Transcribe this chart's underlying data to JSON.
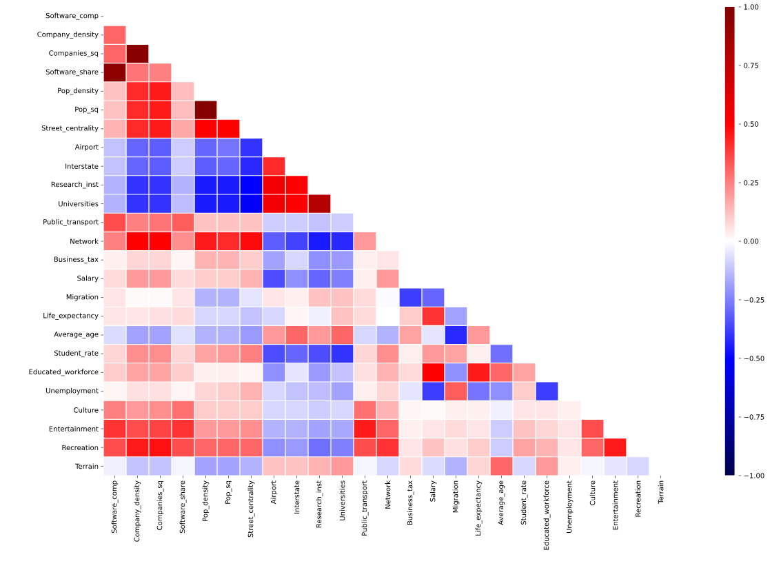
{
  "chart_data": {
    "type": "heatmap",
    "categories": [
      "Software_comp",
      "Company_density",
      "Companies_sq",
      "Software_share",
      "Pop_density",
      "Pop_sq",
      "Street_centrality",
      "Airport",
      "Interstate",
      "Research_inst",
      "Universities",
      "Public_transport",
      "Network",
      "Business_tax",
      "Salary",
      "Migration",
      "Life_expectancy",
      "Average_age",
      "Student_rate",
      "Educated_workforce",
      "Unemployment",
      "Culture",
      "Entertainment",
      "Recreation",
      "Terrain"
    ],
    "y_categories": [
      "Software_comp",
      "Company_density",
      "Companies_sq",
      "Software_share",
      "Pop_density",
      "Pop_sq",
      "Street_centrality",
      "Airport",
      "Interstate",
      "Research_inst",
      "Universities",
      "Public_transport",
      "Network",
      "Business_tax",
      "Salary",
      "Migration",
      "Life_expectancy",
      "Average_age",
      "Student_rate",
      "Educated_workforce",
      "Unemployment",
      "Culture",
      "Entertainment",
      "Recreation",
      "Terrain"
    ],
    "cells": [
      [
        null,
        null,
        null,
        null,
        null,
        null,
        null,
        null,
        null,
        null,
        null,
        null,
        null,
        null,
        null,
        null,
        null,
        null,
        null,
        null,
        null,
        null,
        null,
        null,
        null
      ],
      [
        0.3,
        null,
        null,
        null,
        null,
        null,
        null,
        null,
        null,
        null,
        null,
        null,
        null,
        null,
        null,
        null,
        null,
        null,
        null,
        null,
        null,
        null,
        null,
        null,
        null
      ],
      [
        0.3,
        0.97,
        null,
        null,
        null,
        null,
        null,
        null,
        null,
        null,
        null,
        null,
        null,
        null,
        null,
        null,
        null,
        null,
        null,
        null,
        null,
        null,
        null,
        null,
        null
      ],
      [
        0.95,
        0.27,
        0.25,
        null,
        null,
        null,
        null,
        null,
        null,
        null,
        null,
        null,
        null,
        null,
        null,
        null,
        null,
        null,
        null,
        null,
        null,
        null,
        null,
        null,
        null
      ],
      [
        0.12,
        0.42,
        0.45,
        0.13,
        null,
        null,
        null,
        null,
        null,
        null,
        null,
        null,
        null,
        null,
        null,
        null,
        null,
        null,
        null,
        null,
        null,
        null,
        null,
        null,
        null
      ],
      [
        0.12,
        0.42,
        0.45,
        0.13,
        0.98,
        null,
        null,
        null,
        null,
        null,
        null,
        null,
        null,
        null,
        null,
        null,
        null,
        null,
        null,
        null,
        null,
        null,
        null,
        null,
        null
      ],
      [
        0.15,
        0.42,
        0.45,
        0.17,
        0.5,
        0.5,
        null,
        null,
        null,
        null,
        null,
        null,
        null,
        null,
        null,
        null,
        null,
        null,
        null,
        null,
        null,
        null,
        null,
        null,
        null
      ],
      [
        -0.12,
        -0.3,
        -0.32,
        -0.1,
        -0.3,
        -0.27,
        -0.4,
        null,
        null,
        null,
        null,
        null,
        null,
        null,
        null,
        null,
        null,
        null,
        null,
        null,
        null,
        null,
        null,
        null,
        null
      ],
      [
        -0.12,
        -0.3,
        -0.32,
        -0.1,
        -0.32,
        -0.3,
        -0.42,
        0.42,
        null,
        null,
        null,
        null,
        null,
        null,
        null,
        null,
        null,
        null,
        null,
        null,
        null,
        null,
        null,
        null,
        null
      ],
      [
        -0.15,
        -0.4,
        -0.4,
        -0.15,
        -0.45,
        -0.45,
        -0.5,
        0.55,
        0.5,
        null,
        null,
        null,
        null,
        null,
        null,
        null,
        null,
        null,
        null,
        null,
        null,
        null,
        null,
        null,
        null
      ],
      [
        -0.15,
        -0.4,
        -0.4,
        -0.13,
        -0.45,
        -0.45,
        -0.52,
        0.55,
        0.5,
        0.8,
        null,
        null,
        null,
        null,
        null,
        null,
        null,
        null,
        null,
        null,
        null,
        null,
        null,
        null,
        null
      ],
      [
        0.35,
        0.25,
        0.27,
        0.32,
        0.12,
        0.12,
        0.12,
        -0.1,
        -0.1,
        -0.12,
        -0.1,
        null,
        null,
        null,
        null,
        null,
        null,
        null,
        null,
        null,
        null,
        null,
        null,
        null,
        null
      ],
      [
        0.25,
        0.5,
        0.5,
        0.22,
        0.45,
        0.42,
        0.48,
        -0.32,
        -0.37,
        -0.45,
        -0.42,
        0.2,
        null,
        null,
        null,
        null,
        null,
        null,
        null,
        null,
        null,
        null,
        null,
        null,
        null
      ],
      [
        0.03,
        0.08,
        0.08,
        0.02,
        0.15,
        0.15,
        0.1,
        -0.18,
        -0.08,
        -0.22,
        -0.2,
        0.03,
        0.05,
        null,
        null,
        null,
        null,
        null,
        null,
        null,
        null,
        null,
        null,
        null,
        null
      ],
      [
        0.07,
        0.2,
        0.2,
        0.07,
        0.1,
        0.1,
        0.15,
        -0.35,
        -0.22,
        -0.3,
        -0.25,
        0.03,
        0.2,
        0.0,
        null,
        null,
        null,
        null,
        null,
        null,
        null,
        null,
        null,
        null,
        null
      ],
      [
        0.05,
        0.01,
        0.01,
        0.05,
        -0.15,
        -0.15,
        -0.05,
        0.05,
        0.03,
        0.12,
        0.12,
        0.07,
        -0.01,
        -0.38,
        -0.3,
        null,
        null,
        null,
        null,
        null,
        null,
        null,
        null,
        null,
        null
      ],
      [
        0.05,
        0.05,
        0.06,
        0.07,
        -0.08,
        -0.08,
        -0.12,
        -0.08,
        0.02,
        -0.03,
        0.12,
        0.07,
        0.0,
        0.1,
        0.4,
        -0.18,
        null,
        null,
        null,
        null,
        null,
        null,
        null,
        null,
        null
      ],
      [
        -0.07,
        -0.18,
        -0.18,
        -0.06,
        -0.15,
        -0.15,
        -0.2,
        0.2,
        0.3,
        0.2,
        0.3,
        -0.08,
        -0.15,
        0.18,
        -0.05,
        -0.42,
        0.2,
        null,
        null,
        null,
        null,
        null,
        null,
        null,
        null
      ],
      [
        0.08,
        0.22,
        0.22,
        0.08,
        0.18,
        0.2,
        0.25,
        -0.35,
        -0.3,
        -0.35,
        -0.4,
        0.08,
        0.22,
        0.03,
        0.2,
        0.18,
        0.03,
        -0.28,
        null,
        null,
        null,
        null,
        null,
        null,
        null
      ],
      [
        0.1,
        0.18,
        0.18,
        0.1,
        0.03,
        0.03,
        0.02,
        -0.22,
        -0.05,
        -0.2,
        -0.12,
        0.06,
        0.15,
        0.07,
        0.5,
        -0.22,
        0.45,
        0.3,
        0.18,
        null,
        null,
        null,
        null,
        null,
        null
      ],
      [
        0.02,
        0.06,
        0.06,
        0.02,
        0.08,
        0.1,
        0.15,
        -0.08,
        -0.12,
        -0.13,
        -0.18,
        0.03,
        0.08,
        -0.05,
        -0.38,
        0.32,
        -0.27,
        -0.22,
        0.1,
        -0.38,
        null,
        null,
        null,
        null,
        null
      ],
      [
        0.25,
        0.2,
        0.22,
        0.28,
        0.1,
        0.1,
        0.1,
        -0.08,
        -0.08,
        -0.1,
        -0.08,
        0.28,
        0.15,
        0.02,
        0.01,
        0.03,
        0.03,
        -0.03,
        0.05,
        0.05,
        0.03,
        null,
        null,
        null,
        null
      ],
      [
        0.4,
        0.35,
        0.37,
        0.4,
        0.2,
        0.2,
        0.22,
        -0.15,
        -0.15,
        -0.18,
        -0.17,
        0.45,
        0.3,
        0.03,
        0.05,
        0.07,
        0.05,
        -0.1,
        0.12,
        0.08,
        0.05,
        0.35,
        null,
        null,
        null
      ],
      [
        0.35,
        0.45,
        0.47,
        0.35,
        0.3,
        0.3,
        0.3,
        -0.22,
        -0.2,
        -0.28,
        -0.25,
        0.35,
        0.4,
        0.05,
        0.12,
        0.06,
        0.1,
        -0.1,
        0.18,
        0.15,
        0.05,
        0.3,
        0.45,
        null,
        null
      ],
      [
        -0.03,
        -0.12,
        -0.12,
        -0.02,
        -0.18,
        -0.18,
        -0.15,
        0.12,
        0.12,
        0.15,
        0.2,
        -0.02,
        -0.08,
        0.07,
        -0.07,
        -0.15,
        0.08,
        0.3,
        -0.08,
        0.2,
        0.03,
        -0.02,
        -0.05,
        -0.08,
        null
      ]
    ],
    "clim": [
      -1,
      1
    ],
    "cticks": [
      {
        "value": -1,
        "label": "−1.00"
      },
      {
        "value": -0.75,
        "label": "−0.75"
      },
      {
        "value": -0.5,
        "label": "−0.50"
      },
      {
        "value": -0.25,
        "label": "−0.25"
      },
      {
        "value": 0,
        "label": "0.00"
      },
      {
        "value": 0.25,
        "label": "0.25"
      },
      {
        "value": 0.5,
        "label": "0.50"
      },
      {
        "value": 0.75,
        "label": "0.75"
      },
      {
        "value": 1,
        "label": "1.00"
      }
    ]
  }
}
